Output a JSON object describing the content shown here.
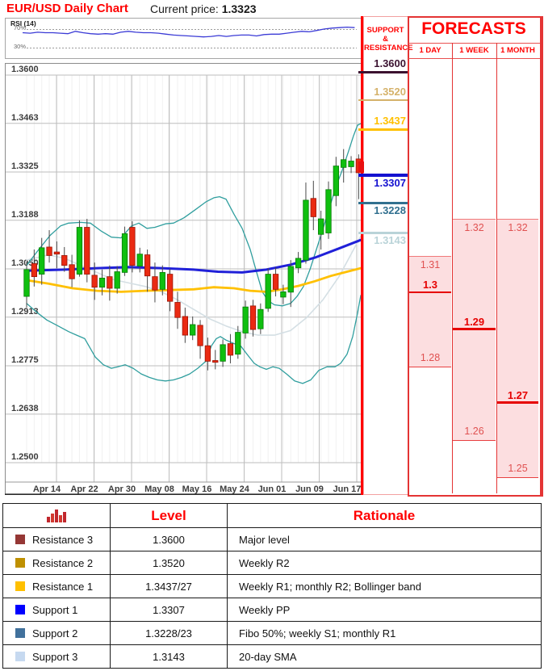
{
  "header": {
    "title": "EUR/USD Daily Chart",
    "current_price_label": "Current price:",
    "current_price": "1.3323"
  },
  "support_resistance": {
    "header_line1": "SUPPORT &",
    "header_line2": "RESISTANCE",
    "levels": [
      {
        "value": "1.3600",
        "price": 1.36,
        "color": "#3b1230",
        "label_side": "above",
        "thickness": 3
      },
      {
        "value": "1.3520",
        "price": 1.352,
        "color": "#d5b26a",
        "label_side": "above",
        "thickness": 2.5
      },
      {
        "value": "1.3437",
        "price": 1.3437,
        "color": "#ffc000",
        "label_side": "above",
        "thickness": 3
      },
      {
        "value": "1.3307",
        "price": 1.3307,
        "color": "#1512d0",
        "label_side": "below",
        "thickness": 3.5
      },
      {
        "value": "1.3228",
        "price": 1.3228,
        "color": "#31708f",
        "label_side": "below",
        "thickness": 3
      },
      {
        "value": "1.3143",
        "price": 1.3143,
        "color": "#b9d3d8",
        "label_side": "below",
        "thickness": 2.5
      }
    ]
  },
  "forecasts": {
    "title": "FORECASTS",
    "columns": [
      {
        "label": "1 DAY",
        "high": 1.31,
        "central": 1.3,
        "low": 1.28,
        "high_label": "1.31",
        "central_label": "1.3",
        "low_label": "1.28"
      },
      {
        "label": "1 WEEK",
        "high": 1.32,
        "central": 1.29,
        "low": 1.26,
        "high_label": "1.32",
        "central_label": "1.29",
        "low_label": "1.26"
      },
      {
        "label": "1 MONTH",
        "high": 1.32,
        "central": 1.27,
        "low": 1.25,
        "high_label": "1.32",
        "central_label": "1.27",
        "low_label": "1.25"
      }
    ]
  },
  "table": {
    "level_header": "Level",
    "rationale_header": "Rationale",
    "rows": [
      {
        "name": "Resistance 3",
        "swatch": "#953735",
        "level": "1.3600",
        "rationale": "Major level"
      },
      {
        "name": "Resistance 2",
        "swatch": "#bf9000",
        "level": "1.3520",
        "rationale": "Weekly R2"
      },
      {
        "name": "Resistance 1",
        "swatch": "#ffc000",
        "level": "1.3437/27",
        "rationale": "Weekly R1; monthly R2; Bollinger band"
      },
      {
        "name": "Support 1",
        "swatch": "#0000ff",
        "level": "1.3307",
        "rationale": "Weekly PP"
      },
      {
        "name": "Support 2",
        "swatch": "#41719c",
        "level": "1.3228/23",
        "rationale": "Fibo 50%; weekly S1; monthly R1"
      },
      {
        "name": "Support 3",
        "swatch": "#c6d9f0",
        "level": "1.3143",
        "rationale": "20-day SMA"
      }
    ]
  },
  "chart_data": [
    {
      "type": "candlestick",
      "title": "EUR/USD Daily Chart",
      "ylim": [
        1.25,
        1.36
      ],
      "y_tick_labels": [
        "1.3600",
        "1.3463",
        "1.3325",
        "1.3188",
        "1.3050",
        "1.2913",
        "1.2775",
        "1.2638",
        "1.2500"
      ],
      "x_labels": [
        "Apr 14",
        "Apr 22",
        "Apr 30",
        "May 08",
        "May 16",
        "May 24",
        "Jun 01",
        "Jun 09",
        "Jun 17"
      ],
      "grid": true,
      "colors": {
        "up": "#0fbf0f",
        "up_stroke": "#067d06",
        "down": "#ea2a12",
        "down_stroke": "#9c1405",
        "bollinger": "#2f9e9e",
        "sma_blue": "#2020d8",
        "sma_yellow": "#ffc000",
        "sma_pale": "#d4dfe4",
        "wick": "#4a4a4a"
      },
      "candles_ochl": [
        [
          1.2972,
          1.3048,
          1.307,
          1.294
        ],
        [
          1.3065,
          1.3028,
          1.3105,
          1.3
        ],
        [
          1.3035,
          1.311,
          1.3138,
          1.3005
        ],
        [
          1.3112,
          1.3088,
          1.316,
          1.3068
        ],
        [
          1.3098,
          1.3092,
          1.3128,
          1.3052
        ],
        [
          1.3088,
          1.306,
          1.3112,
          1.3042
        ],
        [
          1.3062,
          1.3022,
          1.309,
          1.2998
        ],
        [
          1.3035,
          1.3168,
          1.3188,
          1.3028
        ],
        [
          1.3168,
          1.3035,
          1.3192,
          1.3012
        ],
        [
          1.3032,
          1.2998,
          1.3068,
          1.2962
        ],
        [
          1.2998,
          1.3024,
          1.3048,
          1.2975
        ],
        [
          1.3028,
          1.2995,
          1.306,
          1.296
        ],
        [
          1.2995,
          1.3042,
          1.3058,
          1.298
        ],
        [
          1.304,
          1.315,
          1.317,
          1.303
        ],
        [
          1.3168,
          1.306,
          1.3185,
          1.304
        ],
        [
          1.3058,
          1.3092,
          1.311,
          1.304
        ],
        [
          1.309,
          1.303,
          1.3105,
          1.2985
        ],
        [
          1.3028,
          1.299,
          1.3068,
          1.2955
        ],
        [
          1.2992,
          1.304,
          1.306,
          1.2975
        ],
        [
          1.3035,
          1.2958,
          1.305,
          1.293
        ],
        [
          1.2955,
          1.2912,
          1.2985,
          1.288
        ],
        [
          1.2915,
          1.2862,
          1.294,
          1.284
        ],
        [
          1.2862,
          1.2892,
          1.2915,
          1.2848
        ],
        [
          1.289,
          1.2832,
          1.2905,
          1.2795
        ],
        [
          1.2832,
          1.2788,
          1.2855,
          1.2762
        ],
        [
          1.279,
          1.2785,
          1.282,
          1.2765
        ],
        [
          1.2788,
          1.2835,
          1.285,
          1.2772
        ],
        [
          1.2838,
          1.2805,
          1.2865,
          1.2782
        ],
        [
          1.2808,
          1.287,
          1.2888,
          1.2795
        ],
        [
          1.2868,
          1.2942,
          1.296,
          1.2852
        ],
        [
          1.2945,
          1.2878,
          1.2962,
          1.2858
        ],
        [
          1.288,
          1.2935,
          1.2952,
          1.2865
        ],
        [
          1.2938,
          1.3035,
          1.3052,
          1.2928
        ],
        [
          1.3035,
          1.2992,
          1.3055,
          1.2972
        ],
        [
          1.297,
          1.2985,
          1.3005,
          1.295
        ],
        [
          1.2984,
          1.3057,
          1.3075,
          1.2942
        ],
        [
          1.3053,
          1.308,
          1.3098,
          1.3038
        ],
        [
          1.3075,
          1.3245,
          1.3295,
          1.3065
        ],
        [
          1.325,
          1.3198,
          1.33,
          1.316
        ],
        [
          1.3148,
          1.3192,
          1.3215,
          1.3105
        ],
        [
          1.3152,
          1.3275,
          1.3298,
          1.3135
        ],
        [
          1.3258,
          1.3342,
          1.3368,
          1.3228
        ],
        [
          1.3338,
          1.336,
          1.339,
          1.3295
        ],
        [
          1.334,
          1.3356,
          1.337,
          1.3322
        ],
        [
          1.3362,
          1.3323,
          1.3375,
          1.3248
        ]
      ],
      "overlays": {
        "bollinger_upper": [
          [
            33,
            1.306
          ],
          [
            48,
            1.3105
          ],
          [
            62,
            1.3145
          ],
          [
            75,
            1.3172
          ],
          [
            85,
            1.318
          ],
          [
            100,
            1.3182
          ],
          [
            112,
            1.318
          ],
          [
            125,
            1.3158
          ],
          [
            138,
            1.314
          ],
          [
            150,
            1.3138
          ],
          [
            163,
            1.3172
          ],
          [
            172,
            1.318
          ],
          [
            182,
            1.3165
          ],
          [
            192,
            1.3168
          ],
          [
            205,
            1.3178
          ],
          [
            215,
            1.318
          ],
          [
            228,
            1.3195
          ],
          [
            242,
            1.3218
          ],
          [
            255,
            1.324
          ],
          [
            265,
            1.3252
          ],
          [
            272,
            1.3255
          ],
          [
            280,
            1.3248
          ],
          [
            290,
            1.3205
          ],
          [
            300,
            1.3165
          ],
          [
            310,
            1.3105
          ],
          [
            318,
            1.304
          ],
          [
            325,
            1.2985
          ],
          [
            332,
            1.296
          ],
          [
            340,
            1.2948
          ],
          [
            350,
            1.2945
          ],
          [
            360,
            1.2952
          ],
          [
            368,
            1.2972
          ],
          [
            376,
            1.3
          ],
          [
            384,
            1.3048
          ],
          [
            392,
            1.3105
          ],
          [
            400,
            1.3162
          ],
          [
            408,
            1.3222
          ],
          [
            416,
            1.3282
          ],
          [
            424,
            1.333
          ],
          [
            432,
            1.3385
          ],
          [
            438,
            1.3428
          ],
          [
            443,
            1.3458
          ],
          [
            447,
            1.3462
          ]
        ],
        "bollinger_lower": [
          [
            33,
            1.2952
          ],
          [
            45,
            1.2928
          ],
          [
            58,
            1.2905
          ],
          [
            72,
            1.2888
          ],
          [
            85,
            1.2872
          ],
          [
            95,
            1.2862
          ],
          [
            105,
            1.2852
          ],
          [
            118,
            1.28
          ],
          [
            128,
            1.2778
          ],
          [
            138,
            1.2768
          ],
          [
            146,
            1.2772
          ],
          [
            155,
            1.2778
          ],
          [
            165,
            1.2768
          ],
          [
            175,
            1.2752
          ],
          [
            185,
            1.2742
          ],
          [
            195,
            1.2735
          ],
          [
            205,
            1.2732
          ],
          [
            215,
            1.2735
          ],
          [
            225,
            1.2742
          ],
          [
            235,
            1.2752
          ],
          [
            245,
            1.2768
          ],
          [
            255,
            1.2788
          ],
          [
            262,
            1.2832
          ],
          [
            268,
            1.2852
          ],
          [
            273,
            1.2858
          ],
          [
            280,
            1.2848
          ],
          [
            290,
            1.2838
          ],
          [
            298,
            1.2832
          ],
          [
            306,
            1.2808
          ],
          [
            315,
            1.2782
          ],
          [
            322,
            1.2772
          ],
          [
            330,
            1.2765
          ],
          [
            338,
            1.2772
          ],
          [
            346,
            1.2768
          ],
          [
            355,
            1.2752
          ],
          [
            365,
            1.2732
          ],
          [
            375,
            1.2725
          ],
          [
            385,
            1.2735
          ],
          [
            395,
            1.2762
          ],
          [
            405,
            1.2772
          ],
          [
            415,
            1.2772
          ],
          [
            422,
            1.2782
          ],
          [
            430,
            1.2808
          ],
          [
            437,
            1.2858
          ],
          [
            443,
            1.2925
          ],
          [
            447,
            1.2975
          ]
        ],
        "sma_blue": [
          [
            33,
            1.3045
          ],
          [
            80,
            1.3048
          ],
          [
            120,
            1.3052
          ],
          [
            160,
            1.3055
          ],
          [
            200,
            1.3052
          ],
          [
            240,
            1.3048
          ],
          [
            270,
            1.3042
          ],
          [
            300,
            1.304
          ],
          [
            330,
            1.3048
          ],
          [
            360,
            1.3062
          ],
          [
            390,
            1.3082
          ],
          [
            420,
            1.3108
          ],
          [
            447,
            1.3132
          ]
        ],
        "sma_yellow": [
          [
            33,
            1.3018
          ],
          [
            60,
            1.3008
          ],
          [
            90,
            1.2995
          ],
          [
            120,
            1.2988
          ],
          [
            150,
            1.2985
          ],
          [
            180,
            1.2988
          ],
          [
            210,
            1.299
          ],
          [
            240,
            1.2992
          ],
          [
            265,
            1.2998
          ],
          [
            290,
            1.2995
          ],
          [
            310,
            1.2988
          ],
          [
            330,
            1.2985
          ],
          [
            350,
            1.2992
          ],
          [
            370,
            1.3002
          ],
          [
            390,
            1.3015
          ],
          [
            410,
            1.303
          ],
          [
            430,
            1.3042
          ],
          [
            447,
            1.3052
          ]
        ],
        "sma_pale_20day": [
          [
            33,
            1.3075
          ],
          [
            60,
            1.309
          ],
          [
            80,
            1.308
          ],
          [
            100,
            1.306
          ],
          [
            120,
            1.304
          ],
          [
            140,
            1.302
          ],
          [
            160,
            1.301
          ],
          [
            180,
            1.3
          ],
          [
            200,
            1.2985
          ],
          [
            220,
            1.2962
          ],
          [
            240,
            1.2935
          ],
          [
            260,
            1.2908
          ],
          [
            280,
            1.2888
          ],
          [
            300,
            1.2872
          ],
          [
            320,
            1.2862
          ],
          [
            340,
            1.2862
          ],
          [
            360,
            1.2875
          ],
          [
            380,
            1.2912
          ],
          [
            400,
            1.2962
          ],
          [
            420,
            1.3028
          ],
          [
            435,
            1.3092
          ],
          [
            447,
            1.3143
          ]
        ]
      }
    },
    {
      "type": "line",
      "title": "RSI (14)",
      "tick_labels": [
        "70%",
        "30%"
      ],
      "levels": [
        70,
        30
      ],
      "color": "#3b3bd6",
      "values": [
        63,
        62,
        64,
        63,
        63,
        62,
        61,
        66,
        63,
        61,
        60,
        61,
        60,
        64,
        66,
        64,
        63,
        63,
        62,
        60,
        58,
        57,
        56,
        55,
        54,
        55,
        57,
        55,
        57,
        58,
        58,
        56,
        59,
        60,
        60,
        62,
        64,
        66,
        65,
        68,
        71,
        73,
        74,
        75,
        74
      ]
    }
  ]
}
